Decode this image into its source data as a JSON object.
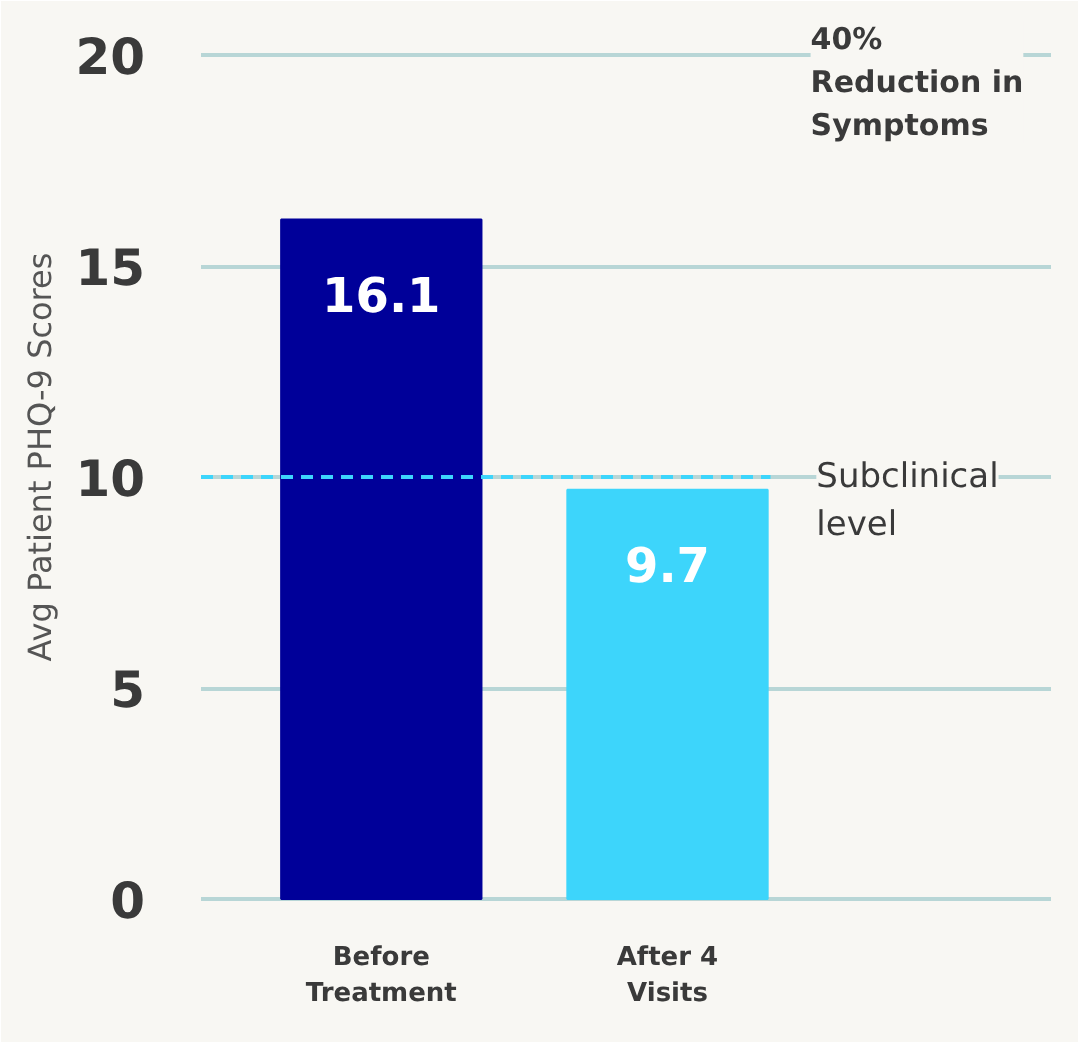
{
  "chart_data": {
    "type": "bar",
    "ylabel": "Avg Patient PHQ-9 Scores",
    "categories": [
      "Before Treatment",
      "After 4 Visits"
    ],
    "values": [
      16.1,
      9.7
    ],
    "colors": [
      "#000099",
      "#3dd5fb"
    ],
    "ylim": [
      0,
      20
    ],
    "yticks": [
      0,
      5,
      10,
      15,
      20
    ],
    "grid": "y",
    "data_labels": true,
    "ref_lines": [
      {
        "axis": "y",
        "value": 10,
        "label": "Subclinical level",
        "color": "#3dd5fb",
        "line_style": "dashed"
      }
    ],
    "annotations": [
      "40% Reduction in Symptoms"
    ]
  }
}
